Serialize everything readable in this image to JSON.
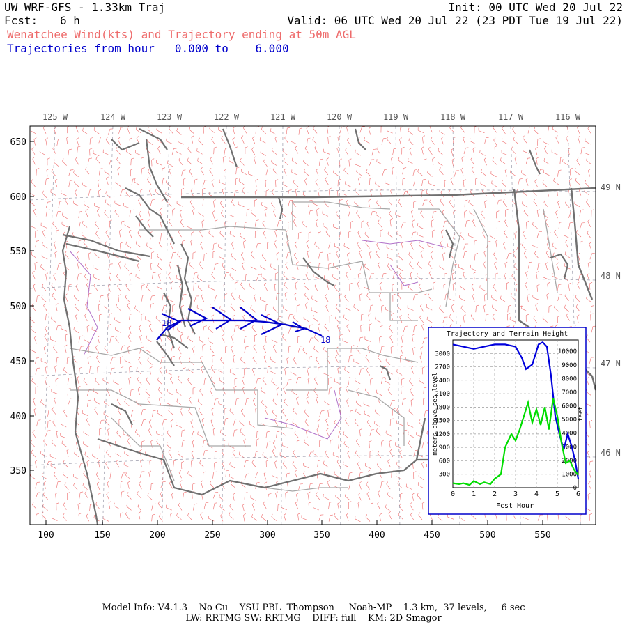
{
  "header": {
    "title": "UW WRF-GFS - 1.33km Traj",
    "init": "Init: 00 UTC Wed 20 Jul 22",
    "fcst_label": "Fcst:",
    "fcst_value": "6 h",
    "valid": "Valid: 06 UTC Wed 20 Jul 22 (23 PDT Tue 19 Jul 22)",
    "subtitle": "Wenatchee Wind(kts) and Trajectory ending at 50m AGL",
    "traj_range": "Trajectories from hour   0.000 to    6.000"
  },
  "map": {
    "x_ticks": [
      "100",
      "150",
      "200",
      "250",
      "300",
      "350",
      "400",
      "450",
      "500",
      "550"
    ],
    "y_ticks": [
      "650",
      "600",
      "550",
      "500",
      "450",
      "400",
      "350"
    ],
    "lon_labels": [
      "125 W",
      "124 W",
      "123 W",
      "122 W",
      "121 W",
      "120 W",
      "119 W",
      "118 W",
      "117 W",
      "116 W"
    ],
    "lat_labels": [
      "49 N",
      "48 N",
      "47 N",
      "46 N"
    ],
    "traj_start_label": "18",
    "traj_end_label": "18",
    "colors": {
      "wind": "#ee6b6b",
      "trajectory": "#0000cc",
      "coast": "#707070",
      "boundary": "#a8a8a8",
      "county": "#b070c8"
    }
  },
  "inset": {
    "title": "Trajectory and Terrain Height",
    "xlabel": "Fcst Hour",
    "ylabel_left": "meters above sea level",
    "ylabel_right": "feet",
    "x_ticks": [
      "0",
      "1",
      "2",
      "3",
      "4",
      "5",
      "6"
    ],
    "y_left_ticks": [
      "3000",
      "2700",
      "2400",
      "2100",
      "1800",
      "1500",
      "1200",
      "900",
      "600",
      "300"
    ],
    "y_right_ticks": [
      "10000",
      "9000",
      "8000",
      "7000",
      "6000",
      "5000",
      "4000",
      "3000",
      "2000",
      "1000",
      "0"
    ]
  },
  "chart_data": {
    "type": "line",
    "title": "Trajectory and Terrain Height",
    "xlabel": "Fcst Hour",
    "ylabel": "meters above sea level",
    "xlim": [
      0,
      6
    ],
    "ylim": [
      0,
      3300
    ],
    "series": [
      {
        "color": "#0000dd",
        "x": [
          0,
          0.5,
          1.0,
          1.5,
          2.0,
          2.5,
          3.0,
          3.3,
          3.5,
          3.8,
          4.1,
          4.3,
          4.5,
          4.7,
          4.9,
          5.1,
          5.3,
          5.5,
          5.7,
          5.85,
          6.0
        ],
        "y": [
          3200,
          3150,
          3100,
          3150,
          3200,
          3200,
          3150,
          2900,
          2650,
          2750,
          3200,
          3250,
          3150,
          2500,
          1600,
          1200,
          850,
          1200,
          900,
          600,
          200
        ]
      },
      {
        "color": "#00dd00",
        "x": [
          0,
          0.3,
          0.5,
          0.8,
          1.0,
          1.3,
          1.5,
          1.8,
          2.0,
          2.3,
          2.5,
          2.8,
          3.0,
          3.2,
          3.4,
          3.6,
          3.8,
          4.0,
          4.2,
          4.4,
          4.6,
          4.8,
          5.0,
          5.2,
          5.4,
          5.6,
          5.8,
          6.0
        ],
        "y": [
          100,
          80,
          100,
          60,
          150,
          80,
          120,
          80,
          200,
          300,
          900,
          1200,
          1050,
          1300,
          1600,
          1900,
          1450,
          1750,
          1400,
          1800,
          1300,
          2000,
          1600,
          1000,
          550,
          600,
          400,
          280
        ]
      }
    ]
  },
  "footer": {
    "line1": "Model Info: V4.1.3    No Cu    YSU PBL  Thompson     Noah-MP    1.3 km,  37 levels,     6 sec",
    "line2": "LW: RRTMG SW: RRTMG    DIFF: full    KM: 2D Smagor"
  }
}
